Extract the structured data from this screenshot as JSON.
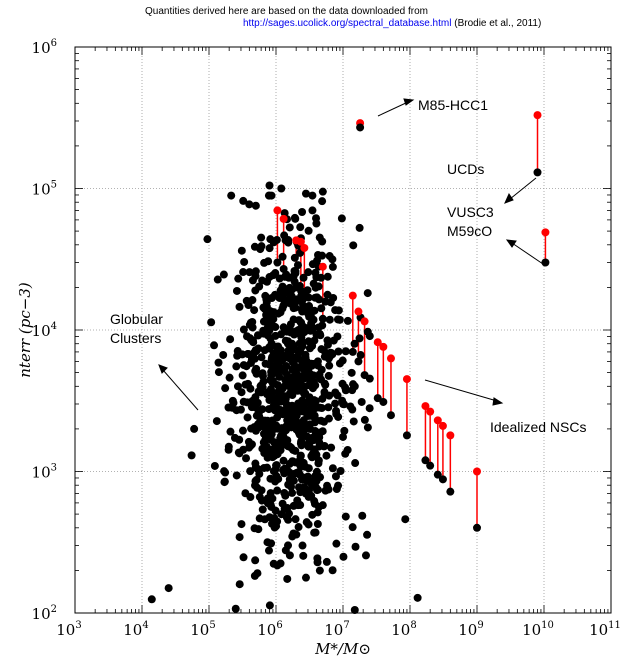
{
  "header": {
    "line1": "Quantities derived here are based on the data downloaded from",
    "link": "http://sages.ucolick.org/spectral_database.html",
    "citation": "(Brodie et al., 2011)"
  },
  "chart_data": {
    "type": "scatter",
    "x_scale": "log",
    "y_scale": "log",
    "xlim": [
      1000,
      100000000000
    ],
    "ylim": [
      100,
      1000000
    ],
    "x_tick_base": "10",
    "x_tick_exponents": [
      "3",
      "4",
      "5",
      "6",
      "7",
      "8",
      "9",
      "10",
      "11"
    ],
    "y_tick_base": "10",
    "y_tick_exponents": [
      "2",
      "3",
      "4",
      "5",
      "6"
    ],
    "x_tick_values": [
      1000,
      10000,
      100000,
      1000000,
      10000000,
      100000000,
      1000000000,
      10000000000,
      100000000000
    ],
    "y_tick_values": [
      100,
      1000,
      10000,
      100000,
      1000000
    ],
    "xlabel": "M*/M⊙",
    "ylabel": "nterr (pc−3)",
    "grid": true,
    "colors": {
      "observed": "#000000",
      "idealized": "#ff0000"
    },
    "annotations": {
      "m85": "M85-HCC1",
      "ucds": "UCDs",
      "vusc3": "VUSC3",
      "m59co": "M59cO",
      "globular_1": "Globular",
      "globular_2": "Clusters",
      "nscs": "Idealized NSCs"
    },
    "pairs": [
      {
        "x": 18000000,
        "y_low": 270000,
        "y_high": 290000
      },
      {
        "x": 8000000000,
        "y_low": 130000,
        "y_high": 330000
      },
      {
        "x": 10500000000,
        "y_low": 30000,
        "y_high": 49000
      },
      {
        "x": 1050000,
        "y_low": 30000,
        "y_high": 70000
      },
      {
        "x": 1300000,
        "y_low": 27000,
        "y_high": 61000
      },
      {
        "x": 2000000,
        "y_low": 20000,
        "y_high": 43000
      },
      {
        "x": 2350000,
        "y_low": 16000,
        "y_high": 42000
      },
      {
        "x": 2650000,
        "y_low": 14000,
        "y_high": 38000
      },
      {
        "x": 5000000,
        "y_low": 12000,
        "y_high": 28000
      },
      {
        "x": 14000000,
        "y_low": 7000,
        "y_high": 17500
      },
      {
        "x": 17000000,
        "y_low": 6000,
        "y_high": 13500
      },
      {
        "x": 21000000,
        "y_low": 4800,
        "y_high": 11500
      },
      {
        "x": 33000000,
        "y_low": 3300,
        "y_high": 8200
      },
      {
        "x": 40000000,
        "y_low": 3100,
        "y_high": 7600
      },
      {
        "x": 52000000,
        "y_low": 2500,
        "y_high": 6300
      },
      {
        "x": 90000000,
        "y_low": 1800,
        "y_high": 4500
      },
      {
        "x": 170000000,
        "y_low": 1200,
        "y_high": 2900
      },
      {
        "x": 200000000,
        "y_low": 1100,
        "y_high": 2650
      },
      {
        "x": 260000000,
        "y_low": 950,
        "y_high": 2300
      },
      {
        "x": 310000000,
        "y_low": 880,
        "y_high": 2100
      },
      {
        "x": 400000000,
        "y_low": 720,
        "y_high": 1800
      },
      {
        "x": 1000000000,
        "y_low": 400,
        "y_high": 1000
      }
    ],
    "extra_points": [
      {
        "x": 14000,
        "y": 125
      },
      {
        "x": 25000,
        "y": 150
      },
      {
        "x": 55000,
        "y": 1300
      },
      {
        "x": 60000,
        "y": 2000
      },
      {
        "x": 500000,
        "y": 26000
      },
      {
        "x": 600000,
        "y": 45000
      },
      {
        "x": 800000,
        "y": 105000
      },
      {
        "x": 1200000,
        "y": 100000
      },
      {
        "x": 2800000,
        "y": 92000
      },
      {
        "x": 5000000,
        "y": 95000
      },
      {
        "x": 4500000,
        "y": 45000
      },
      {
        "x": 3500000,
        "y": 70000
      },
      {
        "x": 9000000,
        "y": 5800
      },
      {
        "x": 10000000,
        "y": 3000
      },
      {
        "x": 11000000,
        "y": 480
      },
      {
        "x": 15000000,
        "y": 4000
      },
      {
        "x": 15000000,
        "y": 105
      },
      {
        "x": 25000000,
        "y": 2800
      },
      {
        "x": 85000000,
        "y": 460
      },
      {
        "x": 130000000,
        "y": 128
      }
    ],
    "cloud": {
      "count": 880,
      "seed": 20110,
      "center_logx": 6.2,
      "center_logy": 3.55,
      "sigma_logx": 0.42,
      "sigma_logy": 0.55
    }
  }
}
